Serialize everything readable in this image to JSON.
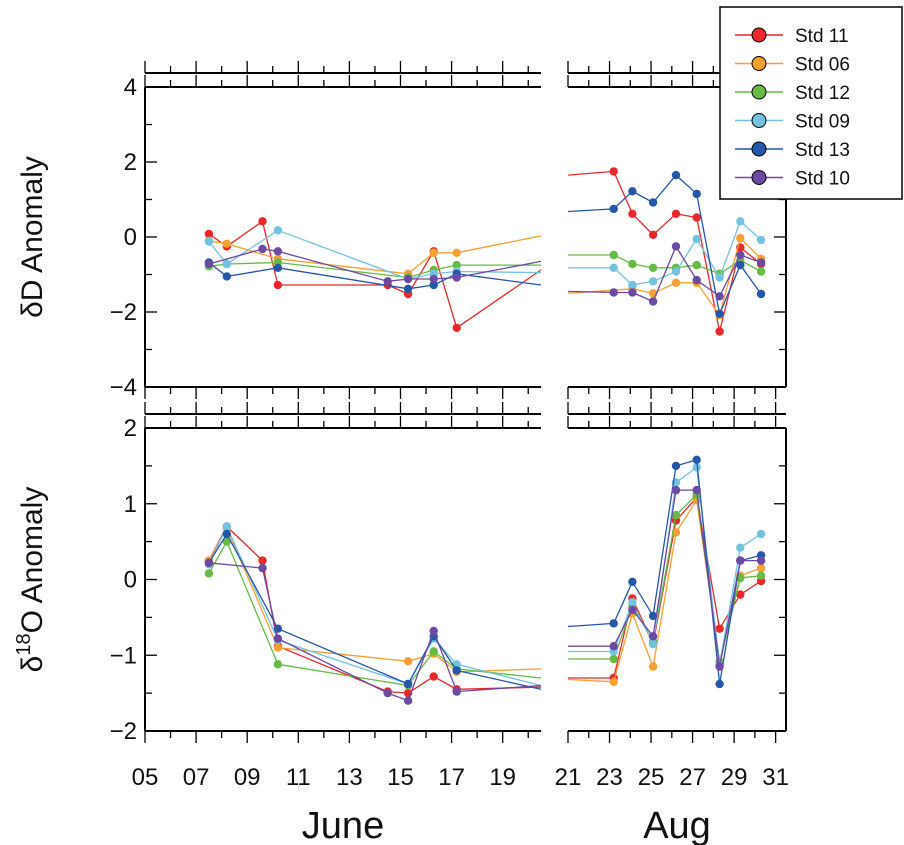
{
  "chart_data": {
    "type": "line",
    "colors": {
      "Std 11": "#e8282b",
      "Std 06": "#f5a033",
      "Std 12": "#66bb45",
      "Std 09": "#72c3df",
      "Std 13": "#2457a8",
      "Std 10": "#6c49a2"
    },
    "legend": {
      "placement": "top-right",
      "entries": [
        "Std 11",
        "Std 06",
        "Std 12",
        "Std 09",
        "Std 13",
        "Std 10"
      ]
    },
    "x_axis": {
      "unit": "day of month",
      "june_ticks": [
        "05",
        "07",
        "09",
        "11",
        "13",
        "15",
        "17",
        "19"
      ],
      "aug_ticks": [
        "21",
        "23",
        "25",
        "27",
        "29",
        "31"
      ],
      "june_range": [
        5,
        20.5
      ],
      "aug_range": [
        21,
        31.5
      ],
      "month_labels": [
        "June",
        "Aug"
      ]
    },
    "panels": [
      {
        "id": "dD",
        "ylabel_greek": "δ",
        "ylabel_main": "D Anomaly",
        "ylabel_sup": "",
        "ylabel_tail": "",
        "ylim": [
          -4,
          4
        ],
        "y_ticks": [
          -4,
          -2,
          0,
          2,
          4
        ],
        "y_tick_labels": [
          "−4",
          "−2",
          "0",
          "2",
          "4"
        ],
        "series": [
          {
            "name": "Std 11",
            "june": [
              [
                7.5,
                0.08
              ],
              [
                8.2,
                -0.25
              ],
              [
                9.6,
                0.42
              ],
              [
                10.2,
                -1.28
              ],
              [
                14.5,
                -1.28
              ],
              [
                15.3,
                -1.52
              ],
              [
                16.3,
                -0.38
              ],
              [
                17.2,
                -2.42
              ],
              [
                20.5,
                -0.88
              ]
            ],
            "june_markers": 8,
            "aug": [
              [
                21,
                1.65
              ],
              [
                23.2,
                1.75
              ],
              [
                24.1,
                0.62
              ],
              [
                25.1,
                0.06
              ],
              [
                26.2,
                0.62
              ],
              [
                27.2,
                0.52
              ],
              [
                28.3,
                -2.52
              ],
              [
                29.3,
                -0.28
              ],
              [
                30.3,
                -0.72
              ]
            ],
            "aug_markers_from": 1
          },
          {
            "name": "Std 06",
            "june": [
              [
                7.5,
                -0.1
              ],
              [
                8.2,
                -0.18
              ],
              [
                10.2,
                -0.58
              ],
              [
                15.3,
                -0.98
              ],
              [
                16.3,
                -0.42
              ],
              [
                17.2,
                -0.42
              ],
              [
                20.5,
                0.03
              ]
            ],
            "june_markers": 6,
            "aug": [
              [
                21,
                -1.5
              ],
              [
                24.1,
                -1.38
              ],
              [
                25.1,
                -1.5
              ],
              [
                26.2,
                -1.22
              ],
              [
                27.2,
                -1.22
              ],
              [
                28.3,
                -2.08
              ],
              [
                29.3,
                -0.03
              ],
              [
                30.3,
                -0.58
              ]
            ],
            "aug_markers_from": 1
          },
          {
            "name": "Std 12",
            "june": [
              [
                7.5,
                -0.78
              ],
              [
                8.2,
                -0.72
              ],
              [
                10.2,
                -0.68
              ],
              [
                15.3,
                -1.08
              ],
              [
                16.3,
                -0.88
              ],
              [
                17.2,
                -0.75
              ],
              [
                20.5,
                -0.75
              ]
            ],
            "june_markers": 6,
            "aug": [
              [
                21,
                -0.48
              ],
              [
                23.2,
                -0.48
              ],
              [
                24.1,
                -0.72
              ],
              [
                25.1,
                -0.82
              ],
              [
                26.2,
                -0.82
              ],
              [
                27.2,
                -0.75
              ],
              [
                28.3,
                -0.98
              ],
              [
                29.3,
                -0.62
              ],
              [
                30.3,
                -0.92
              ]
            ],
            "aug_markers_from": 1
          },
          {
            "name": "Std 09",
            "june": [
              [
                7.5,
                -0.12
              ],
              [
                8.2,
                -0.72
              ],
              [
                10.2,
                0.18
              ],
              [
                15.3,
                -1.12
              ],
              [
                16.3,
                -0.98
              ],
              [
                17.2,
                -0.92
              ],
              [
                20.5,
                -0.95
              ]
            ],
            "june_markers": 6,
            "aug": [
              [
                21,
                -0.82
              ],
              [
                23.2,
                -0.82
              ],
              [
                24.1,
                -1.28
              ],
              [
                25.1,
                -1.18
              ],
              [
                26.2,
                -0.92
              ],
              [
                27.2,
                -0.05
              ],
              [
                28.3,
                -1.08
              ],
              [
                29.3,
                0.42
              ],
              [
                30.3,
                -0.08
              ]
            ],
            "aug_markers_from": 1
          },
          {
            "name": "Std 13",
            "june": [
              [
                7.5,
                -0.68
              ],
              [
                8.2,
                -1.05
              ],
              [
                10.2,
                -0.82
              ],
              [
                15.3,
                -1.38
              ],
              [
                16.3,
                -1.28
              ],
              [
                17.2,
                -0.98
              ],
              [
                20.5,
                -1.28
              ]
            ],
            "june_markers": 6,
            "aug": [
              [
                21,
                0.68
              ],
              [
                23.2,
                0.75
              ],
              [
                24.1,
                1.22
              ],
              [
                25.1,
                0.92
              ],
              [
                26.2,
                1.65
              ],
              [
                27.2,
                1.15
              ],
              [
                28.3,
                -2.05
              ],
              [
                29.3,
                -0.75
              ],
              [
                30.3,
                -1.52
              ]
            ],
            "aug_markers_from": 1
          },
          {
            "name": "Std 10",
            "june": [
              [
                7.5,
                -0.72
              ],
              [
                9.6,
                -0.32
              ],
              [
                10.2,
                -0.38
              ],
              [
                14.5,
                -1.18
              ],
              [
                15.3,
                -1.12
              ],
              [
                16.3,
                -1.12
              ],
              [
                17.2,
                -1.08
              ],
              [
                20.5,
                -0.65
              ]
            ],
            "june_markers": 7,
            "aug": [
              [
                21,
                -1.45
              ],
              [
                23.2,
                -1.48
              ],
              [
                24.1,
                -1.48
              ],
              [
                25.1,
                -1.72
              ],
              [
                26.2,
                -0.25
              ],
              [
                27.2,
                -1.15
              ],
              [
                28.3,
                -1.58
              ],
              [
                29.3,
                -0.48
              ],
              [
                30.3,
                -0.68
              ]
            ],
            "aug_markers_from": 1
          }
        ]
      },
      {
        "id": "d18O",
        "ylabel_greek": "δ",
        "ylabel_main": "",
        "ylabel_sup": "18",
        "ylabel_tail": "O Anomaly",
        "ylim": [
          -2,
          2
        ],
        "y_ticks": [
          -2,
          -1,
          0,
          1,
          2
        ],
        "y_tick_labels": [
          "−2",
          "−1",
          "0",
          "1",
          "2"
        ],
        "series": [
          {
            "name": "Std 11",
            "june": [
              [
                7.5,
                0.25
              ],
              [
                8.2,
                0.7
              ],
              [
                9.6,
                0.25
              ],
              [
                10.2,
                -0.88
              ],
              [
                14.5,
                -1.48
              ],
              [
                15.3,
                -1.5
              ],
              [
                16.3,
                -1.28
              ],
              [
                17.2,
                -1.45
              ],
              [
                20.5,
                -1.42
              ]
            ],
            "june_markers": 8,
            "aug": [
              [
                21,
                -1.3
              ],
              [
                23.2,
                -1.3
              ],
              [
                24.1,
                -0.25
              ],
              [
                25.1,
                -0.85
              ],
              [
                26.2,
                0.78
              ],
              [
                27.2,
                1.08
              ],
              [
                28.3,
                -0.65
              ],
              [
                29.3,
                -0.2
              ],
              [
                30.3,
                -0.02
              ]
            ],
            "aug_markers_from": 1
          },
          {
            "name": "Std 06",
            "june": [
              [
                7.5,
                0.25
              ],
              [
                8.2,
                0.68
              ],
              [
                10.2,
                -0.9
              ],
              [
                15.3,
                -1.08
              ],
              [
                16.3,
                -0.98
              ],
              [
                17.2,
                -1.22
              ],
              [
                20.5,
                -1.18
              ]
            ],
            "june_markers": 6,
            "aug": [
              [
                21,
                -1.32
              ],
              [
                23.2,
                -1.35
              ],
              [
                24.1,
                -0.45
              ],
              [
                25.1,
                -1.15
              ],
              [
                26.2,
                0.62
              ],
              [
                27.2,
                1.05
              ],
              [
                28.3,
                -1.08
              ],
              [
                29.3,
                0.05
              ],
              [
                30.3,
                0.15
              ]
            ],
            "aug_markers_from": 1
          },
          {
            "name": "Std 12",
            "june": [
              [
                7.5,
                0.08
              ],
              [
                8.2,
                0.5
              ],
              [
                10.2,
                -1.12
              ],
              [
                15.3,
                -1.4
              ],
              [
                16.3,
                -0.95
              ],
              [
                17.2,
                -1.18
              ],
              [
                20.5,
                -1.3
              ]
            ],
            "june_markers": 6,
            "aug": [
              [
                21,
                -1.05
              ],
              [
                23.2,
                -1.05
              ],
              [
                24.1,
                -0.35
              ],
              [
                25.1,
                -0.82
              ],
              [
                26.2,
                0.85
              ],
              [
                27.2,
                1.12
              ],
              [
                28.3,
                -1.1
              ],
              [
                29.3,
                0.02
              ],
              [
                30.3,
                0.05
              ]
            ],
            "aug_markers_from": 1
          },
          {
            "name": "Std 09",
            "june": [
              [
                7.5,
                0.2
              ],
              [
                8.2,
                0.7
              ],
              [
                10.2,
                -0.8
              ],
              [
                15.3,
                -1.38
              ],
              [
                16.3,
                -0.78
              ],
              [
                17.2,
                -1.12
              ],
              [
                20.5,
                -1.4
              ]
            ],
            "june_markers": 6,
            "aug": [
              [
                21,
                -0.95
              ],
              [
                23.2,
                -0.95
              ],
              [
                24.1,
                -0.3
              ],
              [
                25.1,
                -0.85
              ],
              [
                26.2,
                1.28
              ],
              [
                27.2,
                1.48
              ],
              [
                28.3,
                -1.12
              ],
              [
                29.3,
                0.42
              ],
              [
                30.3,
                0.6
              ]
            ],
            "aug_markers_from": 1
          },
          {
            "name": "Std 13",
            "june": [
              [
                7.5,
                0.22
              ],
              [
                8.2,
                0.6
              ],
              [
                10.2,
                -0.65
              ],
              [
                15.3,
                -1.38
              ],
              [
                16.3,
                -0.75
              ],
              [
                17.2,
                -1.2
              ],
              [
                20.5,
                -1.45
              ]
            ],
            "june_markers": 6,
            "aug": [
              [
                21,
                -0.62
              ],
              [
                23.2,
                -0.58
              ],
              [
                24.1,
                -0.03
              ],
              [
                25.1,
                -0.48
              ],
              [
                26.2,
                1.5
              ],
              [
                27.2,
                1.58
              ],
              [
                28.3,
                -1.38
              ],
              [
                29.3,
                0.25
              ],
              [
                30.3,
                0.32
              ]
            ],
            "aug_markers_from": 1
          },
          {
            "name": "Std 10",
            "june": [
              [
                7.5,
                0.22
              ],
              [
                9.6,
                0.15
              ],
              [
                10.2,
                -0.78
              ],
              [
                14.5,
                -1.5
              ],
              [
                15.3,
                -1.6
              ],
              [
                16.3,
                -0.68
              ],
              [
                17.2,
                -1.48
              ],
              [
                20.5,
                -1.4
              ]
            ],
            "june_markers": 7,
            "aug": [
              [
                21,
                -0.88
              ],
              [
                23.2,
                -0.88
              ],
              [
                24.1,
                -0.4
              ],
              [
                25.1,
                -0.75
              ],
              [
                26.2,
                1.18
              ],
              [
                27.2,
                1.18
              ],
              [
                28.3,
                -1.15
              ],
              [
                29.3,
                0.25
              ],
              [
                30.3,
                0.25
              ]
            ],
            "aug_markers_from": 1
          }
        ]
      }
    ]
  }
}
